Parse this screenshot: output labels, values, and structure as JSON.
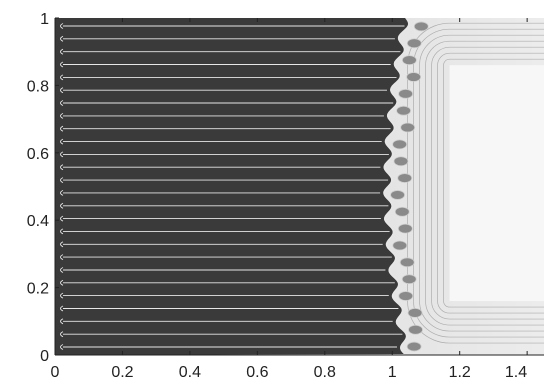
{
  "chart_data": {
    "type": "heatmap",
    "title": "",
    "xlabel": "",
    "ylabel": "",
    "xlim": [
      0,
      1.45
    ],
    "ylim": [
      0,
      1
    ],
    "x_ticks": [
      0,
      0.2,
      0.4,
      0.6,
      0.8,
      1,
      1.2,
      1.4
    ],
    "x_tick_labels": [
      "0",
      "0.2",
      "0.4",
      "0.6",
      "0.8",
      "1",
      "1.2",
      "1.4"
    ],
    "y_ticks": [
      0,
      0.2,
      0.4,
      0.6,
      0.8,
      1
    ],
    "y_tick_labels": [
      "0",
      "0.2",
      "0.4",
      "0.6",
      "0.8",
      "1"
    ],
    "grid": false,
    "front_x": 1.05,
    "inner_region": {
      "x": [
        1.17,
        1.45
      ],
      "y": [
        0.16,
        0.86
      ]
    },
    "stripe_count": 26,
    "colors": {
      "dark_region": "#3a3a3a",
      "contour_line": "#e6e6e6",
      "mid_region": "#bdbdbd",
      "light_region": "#ececec",
      "inner_region": "#f7f7f7",
      "axis": "#222222"
    }
  }
}
